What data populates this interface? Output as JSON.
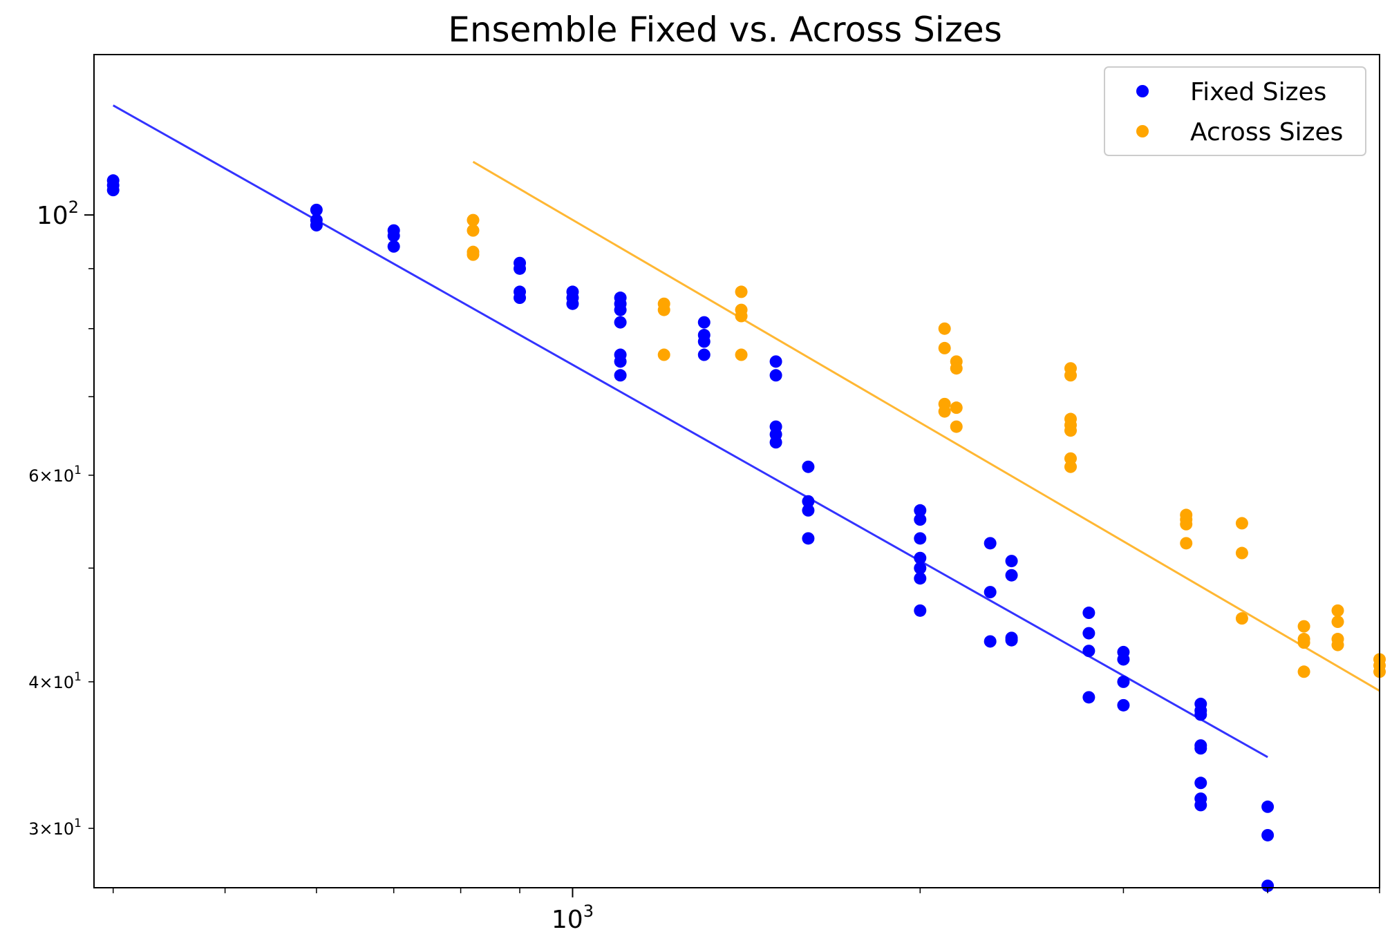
{
  "chart_data": {
    "type": "scatter",
    "title": "Ensemble Fixed vs. Across Sizes",
    "xlabel": "",
    "ylabel": "",
    "xscale": "log",
    "yscale": "log",
    "xlim": [
      385,
      5000
    ],
    "ylim": [
      26.7,
      137
    ],
    "x_ticks": [
      {
        "value": 1000,
        "base": "10",
        "exp": "3"
      }
    ],
    "y_ticks": [
      {
        "value": 100,
        "base": "10",
        "exp": "2",
        "style": "major"
      },
      {
        "value": 60,
        "mant": "6",
        "base": "10",
        "exp": "1",
        "style": "minor"
      },
      {
        "value": 40,
        "mant": "4",
        "base": "10",
        "exp": "1",
        "style": "minor"
      },
      {
        "value": 30,
        "mant": "3",
        "base": "10",
        "exp": "1",
        "style": "minor"
      }
    ],
    "grid": false,
    "legend_position": "top-right",
    "series": [
      {
        "name": "Fixed Sizes",
        "color": "#0000ff",
        "points": [
          [
            400,
            107
          ],
          [
            400,
            106
          ],
          [
            400,
            105
          ],
          [
            600,
            101
          ],
          [
            600,
            99
          ],
          [
            600,
            98
          ],
          [
            700,
            97
          ],
          [
            700,
            96
          ],
          [
            700,
            94
          ],
          [
            900,
            91
          ],
          [
            900,
            90
          ],
          [
            900,
            86
          ],
          [
            900,
            85
          ],
          [
            1000,
            86
          ],
          [
            1000,
            85
          ],
          [
            1000,
            84
          ],
          [
            1100,
            85
          ],
          [
            1100,
            84
          ],
          [
            1100,
            83
          ],
          [
            1100,
            81
          ],
          [
            1100,
            76
          ],
          [
            1100,
            75
          ],
          [
            1100,
            73
          ],
          [
            1300,
            81
          ],
          [
            1300,
            79
          ],
          [
            1300,
            78
          ],
          [
            1300,
            76
          ],
          [
            1500,
            75
          ],
          [
            1500,
            73
          ],
          [
            1500,
            66
          ],
          [
            1500,
            65
          ],
          [
            1500,
            64
          ],
          [
            1600,
            61
          ],
          [
            1600,
            57
          ],
          [
            1600,
            56
          ],
          [
            1600,
            53
          ],
          [
            2000,
            56
          ],
          [
            2000,
            55
          ],
          [
            2000,
            53
          ],
          [
            2000,
            51
          ],
          [
            2000,
            50
          ],
          [
            2000,
            49
          ],
          [
            2000,
            46
          ],
          [
            2300,
            52.5
          ],
          [
            2300,
            47.7
          ],
          [
            2300,
            43.3
          ],
          [
            2400,
            50.7
          ],
          [
            2400,
            49.3
          ],
          [
            2400,
            43.6
          ],
          [
            2400,
            43.4
          ],
          [
            2800,
            45.8
          ],
          [
            2800,
            44
          ],
          [
            2800,
            42.5
          ],
          [
            2800,
            38.8
          ],
          [
            3000,
            42.4
          ],
          [
            3000,
            41.8
          ],
          [
            3000,
            40
          ],
          [
            3000,
            38.2
          ],
          [
            3500,
            38.3
          ],
          [
            3500,
            37.8
          ],
          [
            3500,
            37.5
          ],
          [
            3500,
            35.3
          ],
          [
            3500,
            35.1
          ],
          [
            3500,
            32.8
          ],
          [
            3500,
            31.8
          ],
          [
            3500,
            31.4
          ],
          [
            4000,
            31.3
          ],
          [
            4000,
            29.6
          ],
          [
            4000,
            26.8
          ]
        ],
        "trend": [
          [
            400,
            124
          ],
          [
            4000,
            34.5
          ]
        ]
      },
      {
        "name": "Across Sizes",
        "color": "#ffa500",
        "points": [
          [
            820,
            99
          ],
          [
            820,
            97
          ],
          [
            820,
            93
          ],
          [
            820,
            92.5
          ],
          [
            1200,
            84
          ],
          [
            1200,
            83
          ],
          [
            1200,
            76
          ],
          [
            1400,
            86
          ],
          [
            1400,
            83
          ],
          [
            1400,
            82
          ],
          [
            1400,
            76
          ],
          [
            2100,
            80
          ],
          [
            2100,
            77
          ],
          [
            2100,
            69
          ],
          [
            2100,
            68
          ],
          [
            2150,
            75
          ],
          [
            2150,
            74
          ],
          [
            2150,
            68.5
          ],
          [
            2150,
            66
          ],
          [
            2700,
            74
          ],
          [
            2700,
            73
          ],
          [
            2700,
            67
          ],
          [
            2700,
            66.2
          ],
          [
            2700,
            65.5
          ],
          [
            2700,
            62
          ],
          [
            2700,
            61
          ],
          [
            3400,
            55.5
          ],
          [
            3400,
            55
          ],
          [
            3400,
            54.5
          ],
          [
            3400,
            52.5
          ],
          [
            3800,
            54.6
          ],
          [
            3800,
            51.5
          ],
          [
            3800,
            45.3
          ],
          [
            4300,
            44.6
          ],
          [
            4300,
            43.5
          ],
          [
            4300,
            43.2
          ],
          [
            4300,
            40.8
          ],
          [
            4600,
            46
          ],
          [
            4600,
            45
          ],
          [
            4600,
            43.5
          ],
          [
            4600,
            43
          ],
          [
            5000,
            41.8
          ],
          [
            5000,
            41.3
          ],
          [
            5000,
            40.8
          ]
        ],
        "trend": [
          [
            820,
            111
          ],
          [
            5000,
            39.3
          ]
        ]
      }
    ]
  }
}
